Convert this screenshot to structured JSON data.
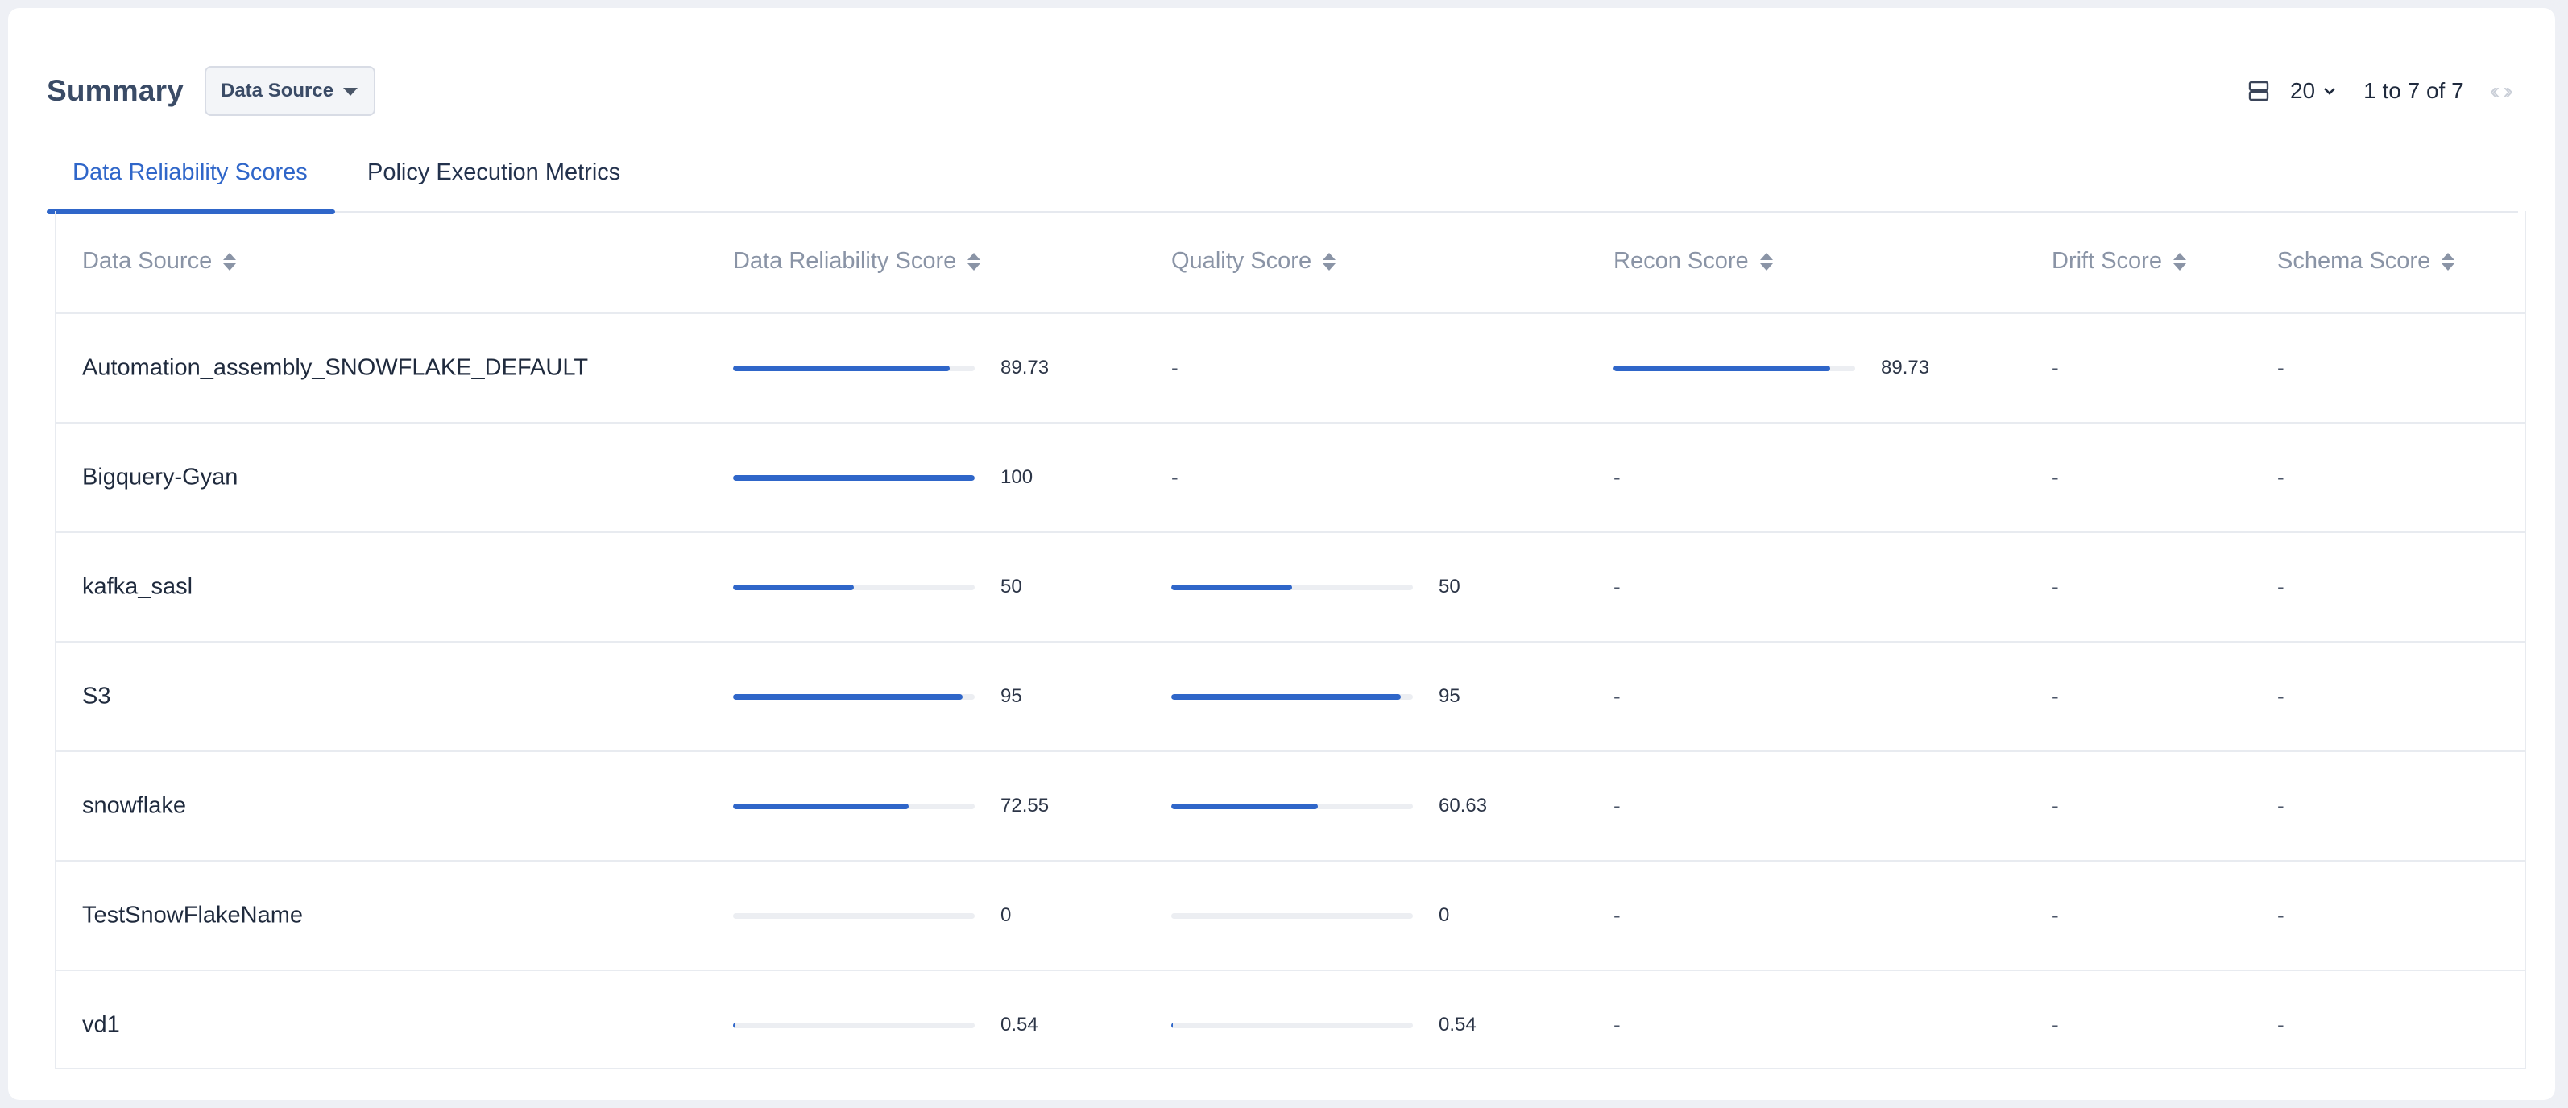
{
  "header": {
    "title": "Summary",
    "group_by_label": "Data Source"
  },
  "pager": {
    "page_size": "20",
    "range": "1 to 7 of 7"
  },
  "tabs": [
    {
      "label": "Data Reliability Scores",
      "active": true
    },
    {
      "label": "Policy Execution Metrics",
      "active": false
    }
  ],
  "table": {
    "columns": [
      "Data Source",
      "Data Reliability Score",
      "Quality Score",
      "Recon Score",
      "Drift Score",
      "Schema Score"
    ],
    "rows": [
      {
        "name": "Automation_assembly_SNOWFLAKE_DEFAULT",
        "reliability": 89.73,
        "reliability_text": "89.73",
        "quality": null,
        "quality_text": "-",
        "recon": 89.73,
        "recon_text": "89.73",
        "drift_text": "-",
        "schema_text": "-"
      },
      {
        "name": "Bigquery-Gyan",
        "reliability": 100,
        "reliability_text": "100",
        "quality": null,
        "quality_text": "-",
        "recon": null,
        "recon_text": "-",
        "drift_text": "-",
        "schema_text": "-"
      },
      {
        "name": "kafka_sasl",
        "reliability": 50,
        "reliability_text": "50",
        "quality": 50,
        "quality_text": "50",
        "recon": null,
        "recon_text": "-",
        "drift_text": "-",
        "schema_text": "-"
      },
      {
        "name": "S3",
        "reliability": 95,
        "reliability_text": "95",
        "quality": 95,
        "quality_text": "95",
        "recon": null,
        "recon_text": "-",
        "drift_text": "-",
        "schema_text": "-"
      },
      {
        "name": "snowflake",
        "reliability": 72.55,
        "reliability_text": "72.55",
        "quality": 60.63,
        "quality_text": "60.63",
        "recon": null,
        "recon_text": "-",
        "drift_text": "-",
        "schema_text": "-"
      },
      {
        "name": "TestSnowFlakeName",
        "reliability": 0,
        "reliability_text": "0",
        "quality": 0,
        "quality_text": "0",
        "recon": null,
        "recon_text": "-",
        "drift_text": "-",
        "schema_text": "-"
      },
      {
        "name": "vd1",
        "reliability": 0.54,
        "reliability_text": "0.54",
        "quality": 0.54,
        "quality_text": "0.54",
        "recon": null,
        "recon_text": "-",
        "drift_text": "-",
        "schema_text": "-"
      }
    ]
  },
  "icons": {
    "rows_icon": "table-rows-icon",
    "dropdown_caret": "caret-down-icon",
    "page_size_chevron": "chevron-down-icon",
    "prev": "double-chevron-left-icon",
    "next": "double-chevron-right-icon",
    "sort": "sort-icon"
  },
  "colors": {
    "accent": "#2f66c9",
    "bar_track": "#eceef2",
    "header_text": "#8a94a6"
  }
}
